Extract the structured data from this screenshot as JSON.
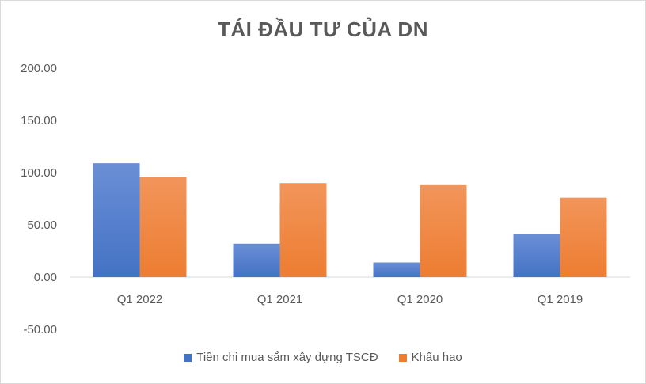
{
  "chart_data": {
    "type": "bar",
    "title": "TÁI ĐẦU TƯ CỦA DN",
    "categories": [
      "Q1 2022",
      "Q1 2021",
      "Q1 2020",
      "Q1 2019"
    ],
    "series": [
      {
        "name": "Tiền chi mua sắm xây dựng TSCĐ",
        "values": [
          109,
          32,
          14,
          41
        ],
        "color": "#4472c4"
      },
      {
        "name": "Khấu hao",
        "values": [
          96,
          90,
          88,
          76
        ],
        "color": "#ed7d31"
      }
    ],
    "ylim": [
      -50,
      200
    ],
    "ytick_values": [
      -50,
      0,
      50,
      100,
      150,
      200
    ],
    "yticks": [
      "-50.00",
      "0.00",
      "50.00",
      "100.00",
      "150.00",
      "200.00"
    ],
    "xlabel": "",
    "ylabel": "",
    "grid": false,
    "legend_position": "bottom"
  }
}
